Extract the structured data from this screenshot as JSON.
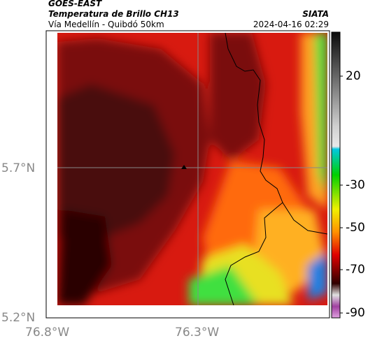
{
  "header": {
    "satellite": "GOES-EAST",
    "product": "Temperatura de Brillo CH13",
    "region": "Vía Medellín - Quibdó 50km",
    "source": "SIATA",
    "datetime": "2024-04-16 02:29"
  },
  "axes": {
    "lat_labels": [
      "5.7°N",
      "5.2°N"
    ],
    "lon_labels": [
      "76.8°W",
      "76.3°W"
    ]
  },
  "colorbar": {
    "tick_labels": [
      "20",
      "-30",
      "-50",
      "-70",
      "-90"
    ],
    "unit_scale": "brightness temperature",
    "colors": [
      "#1a1a1a",
      "#d8d8d8",
      "#00bcd4",
      "#00c000",
      "#f0f000",
      "#ff8000",
      "#e00000",
      "#400000",
      "#c060c0"
    ]
  },
  "map": {
    "colors": {
      "coldest": "#3a0a08",
      "cold": "#7a0c0a",
      "mid": "#d81a10",
      "warm": "#ff7a10",
      "warmer": "#f0e020",
      "warmest": "#30e030"
    }
  }
}
